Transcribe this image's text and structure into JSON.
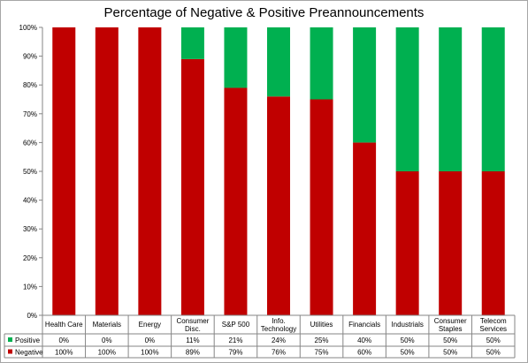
{
  "chart_data": {
    "type": "bar",
    "stacked": true,
    "title": "Percentage of Negative & Positive Preannouncements",
    "xlabel": "",
    "ylabel": "",
    "ylim": [
      0,
      100
    ],
    "yticks": [
      "0%",
      "10%",
      "20%",
      "30%",
      "40%",
      "50%",
      "60%",
      "70%",
      "80%",
      "90%",
      "100%"
    ],
    "categories": [
      [
        "Health Care"
      ],
      [
        "Materials"
      ],
      [
        "Energy"
      ],
      [
        "Consumer",
        "Disc."
      ],
      [
        "S&P 500"
      ],
      [
        "Info.",
        "Technology"
      ],
      [
        "Utilities"
      ],
      [
        "Financials"
      ],
      [
        "Industrials"
      ],
      [
        "Consumer",
        "Staples"
      ],
      [
        "Telecom",
        "Services"
      ]
    ],
    "series": [
      {
        "name": "Negative",
        "color": "#c00000",
        "values": [
          100,
          100,
          100,
          89,
          79,
          76,
          75,
          60,
          50,
          50,
          50
        ],
        "labels": [
          "100%",
          "100%",
          "100%",
          "89%",
          "79%",
          "76%",
          "75%",
          "60%",
          "50%",
          "50%",
          "50%"
        ]
      },
      {
        "name": "Positive",
        "color": "#00b050",
        "values": [
          0,
          0,
          0,
          11,
          21,
          24,
          25,
          40,
          50,
          50,
          50
        ],
        "labels": [
          "0%",
          "0%",
          "0%",
          "11%",
          "21%",
          "24%",
          "25%",
          "40%",
          "50%",
          "50%",
          "50%"
        ]
      }
    ],
    "grid": false,
    "legend": "data-table-left"
  }
}
